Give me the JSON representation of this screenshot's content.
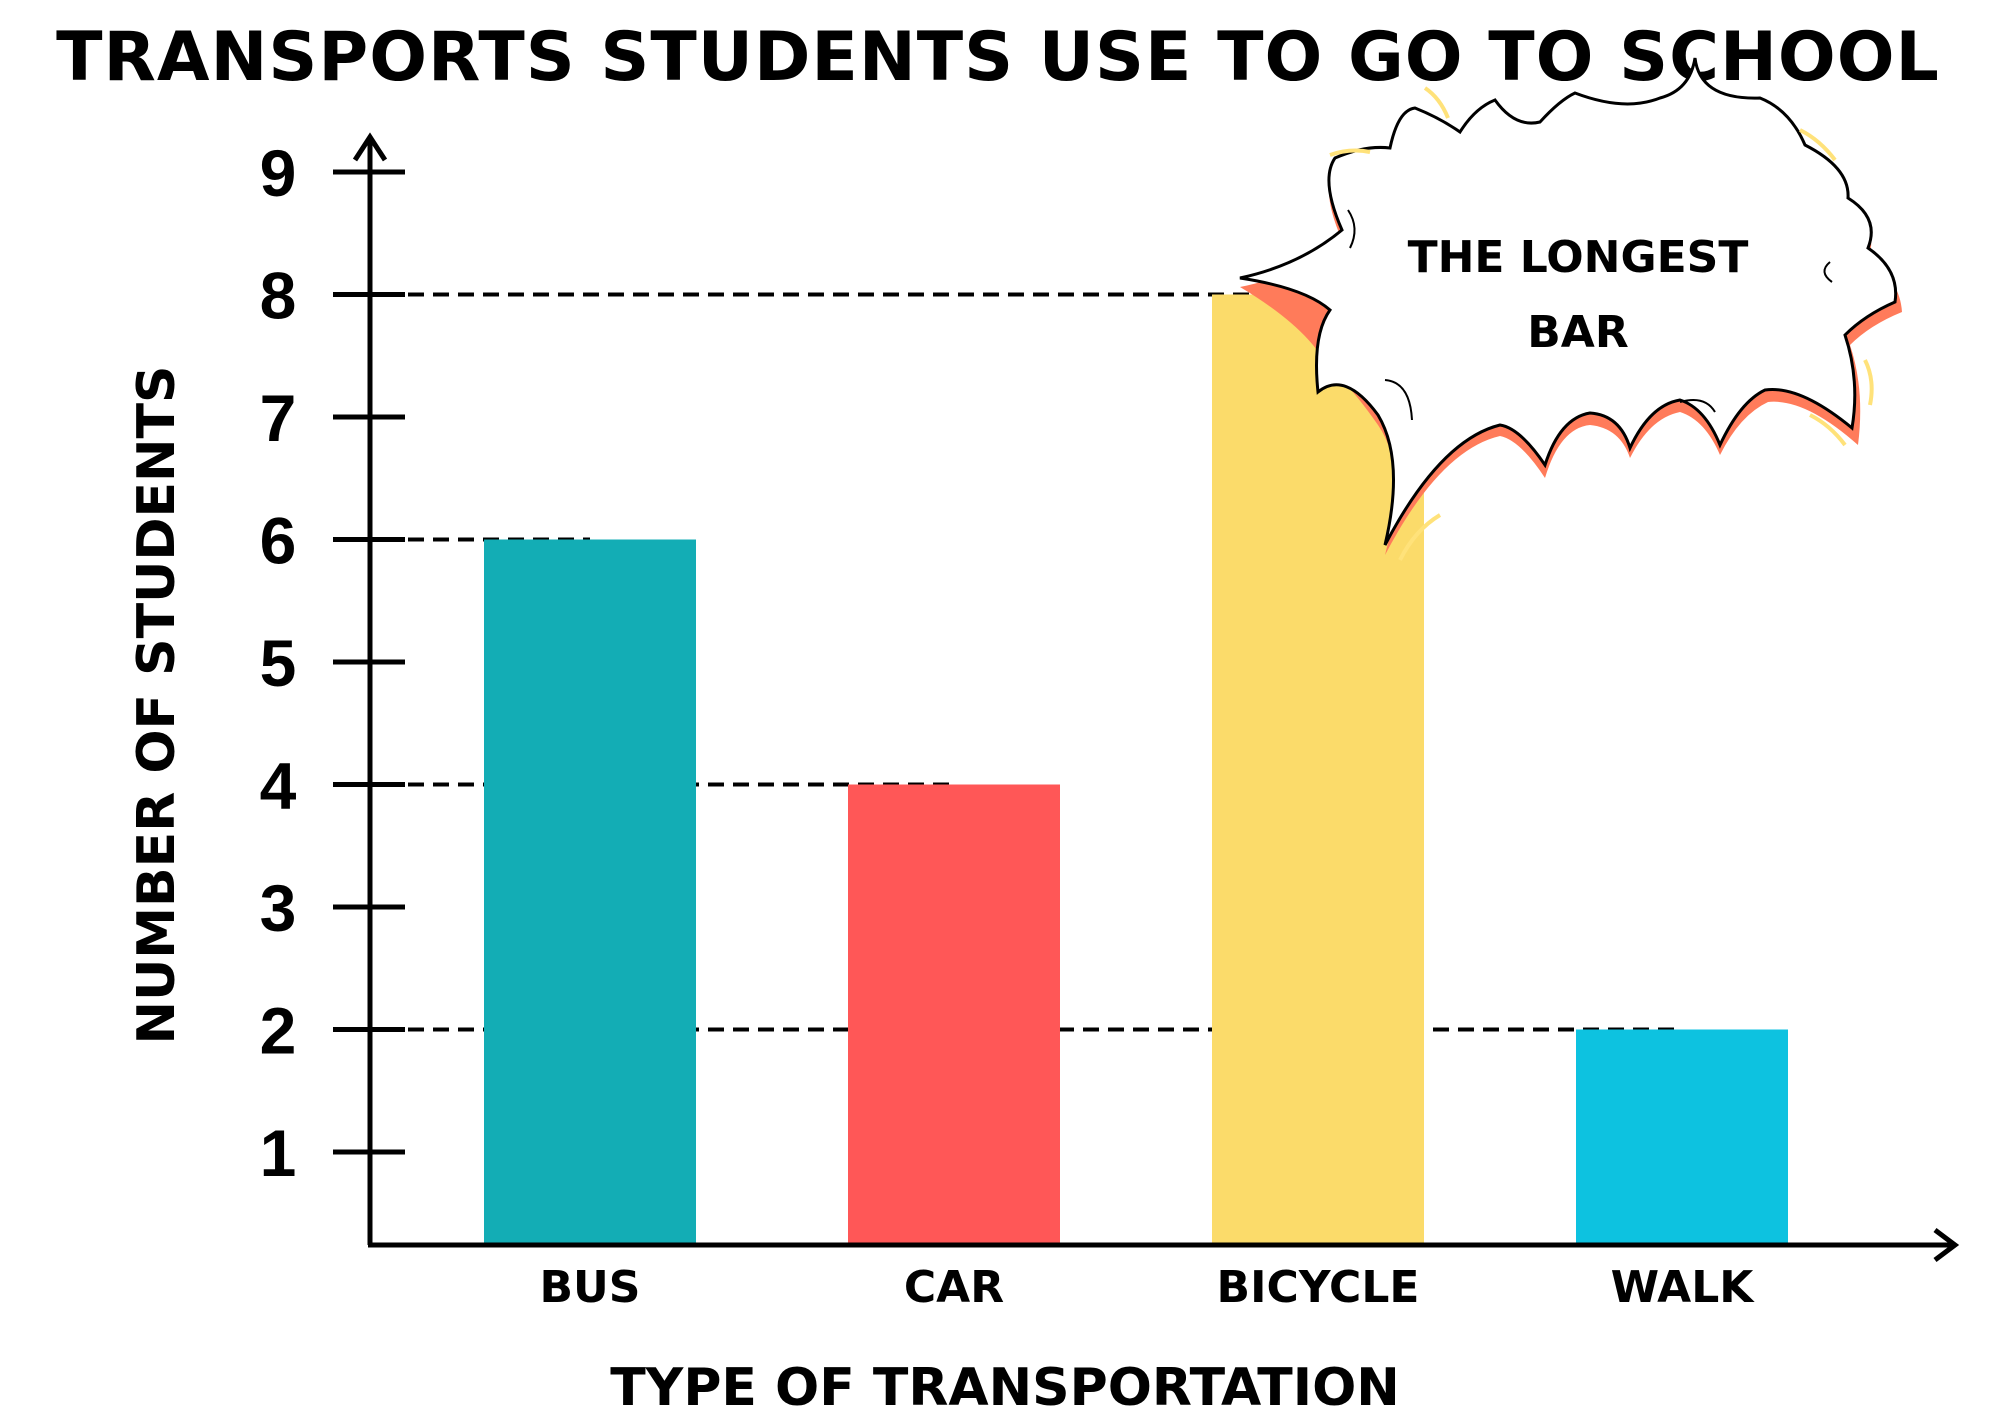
{
  "chart_data": {
    "type": "bar",
    "title": "TRANSPORTS STUDENTS USE TO GO TO SCHOOL",
    "xlabel": "TYPE OF TRANSPORTATION",
    "ylabel": "NUMBER OF STUDENTS",
    "categories": [
      "BUS",
      "CAR",
      "BICYCLE",
      "WALK"
    ],
    "values": [
      6,
      4,
      8,
      2
    ],
    "colors": [
      "#13adb5",
      "#ff5757",
      "#fbdb6a",
      "#0dc2e0"
    ],
    "yticks": [
      "1",
      "2",
      "3",
      "4",
      "5",
      "6",
      "7",
      "8",
      "9"
    ],
    "ylim": [
      0,
      9
    ],
    "grid": false,
    "reference_lines": [
      6,
      4,
      8,
      2
    ],
    "annotation": {
      "lines": [
        "THE LONGEST",
        "BAR"
      ],
      "target": "BICYCLE",
      "shadow_color": "#ff7b5a",
      "spark_color": "#ffe27a"
    }
  }
}
